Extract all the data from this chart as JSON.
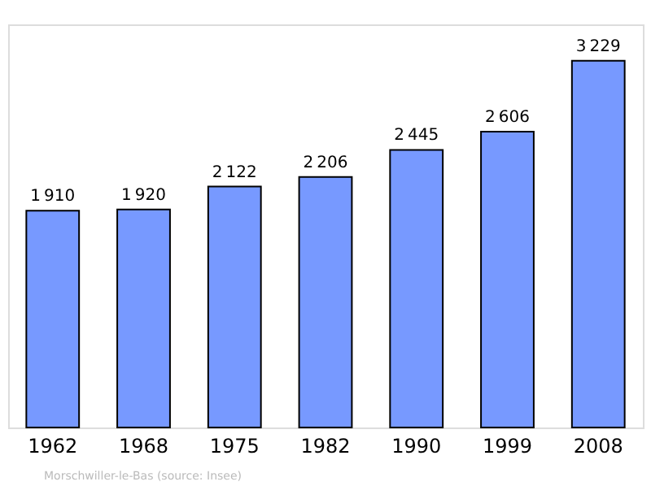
{
  "chart_data": {
    "type": "bar",
    "categories": [
      "1962",
      "1968",
      "1975",
      "1982",
      "1990",
      "1999",
      "2008"
    ],
    "values": [
      1910,
      1920,
      2122,
      2206,
      2445,
      2606,
      3229
    ],
    "color": "#7799ff",
    "ylim": [
      0,
      3550
    ],
    "data_labels": true,
    "annotations": [
      "Morschwiller-le-Bas    (source: Insee)"
    ]
  }
}
